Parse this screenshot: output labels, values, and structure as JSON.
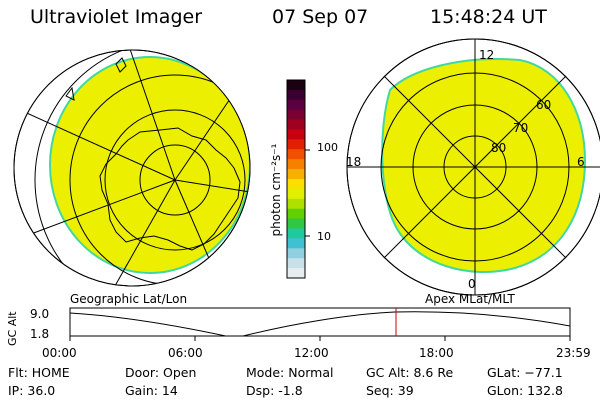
{
  "header": {
    "title": "Ultraviolet Imager",
    "date": "07 Sep 07",
    "time": "15:48:24 UT"
  },
  "colorbar": {
    "unit_label": "photon cm⁻²s⁻¹",
    "ticks": [
      "100",
      "10"
    ],
    "colors": [
      "#1a0010",
      "#3a0030",
      "#5a0040",
      "#7a0030",
      "#a00020",
      "#c80010",
      "#e02000",
      "#f05000",
      "#f88000",
      "#f8b000",
      "#f8e000",
      "#e0f000",
      "#b0e000",
      "#60d000",
      "#30c840",
      "#20c8a0",
      "#40c0d0",
      "#90d0e0",
      "#c8e0e8",
      "#e8eef0"
    ]
  },
  "panels": {
    "left_label": "Geographic Lat/Lon",
    "right_label": "Apex MLat/MLT",
    "right_lat_labels": [
      "60",
      "70",
      "80"
    ],
    "right_mlt_labels": {
      "top": "12",
      "left": "18",
      "right": "6",
      "bottom": "0"
    }
  },
  "altitude_plot": {
    "ylabel": "GC Alt",
    "yticks": [
      "9.0",
      "1.8"
    ],
    "xticks": [
      "00:00",
      "06:00",
      "12:00",
      "18:00",
      "23:59"
    ],
    "current_time_marker": "15:48"
  },
  "info": {
    "flt": "Flt: HOME",
    "ip": "IP: 36.0",
    "door": "Door: Open",
    "gain": "Gain: 14",
    "mode": "Mode: Normal",
    "dsp": "Dsp:    -1.8",
    "gcalt": "GC Alt: 8.6 Re",
    "seq": "Seq: 39",
    "glat": "GLat: −77.1",
    "glon": "GLon: 132.8"
  },
  "colors": {
    "aurora_fill": "#ecf000",
    "aurora_edge": "#40d8a0",
    "marker": "#cc0000"
  }
}
